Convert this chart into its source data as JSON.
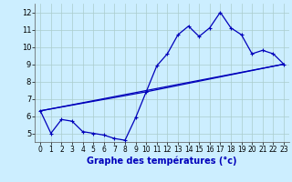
{
  "title": "Graphe des températures (°c)",
  "background_color": "#cceeff",
  "grid_color": "#aacccc",
  "line_color": "#0000bb",
  "xlim": [
    -0.5,
    23.5
  ],
  "ylim": [
    4.5,
    12.5
  ],
  "xticks": [
    0,
    1,
    2,
    3,
    4,
    5,
    6,
    7,
    8,
    9,
    10,
    11,
    12,
    13,
    14,
    15,
    16,
    17,
    18,
    19,
    20,
    21,
    22,
    23
  ],
  "yticks": [
    5,
    6,
    7,
    8,
    9,
    10,
    11,
    12
  ],
  "series1_x": [
    0,
    1,
    2,
    3,
    4,
    5,
    6,
    7,
    8,
    9,
    10,
    11,
    12,
    13,
    14,
    15,
    16,
    17,
    18,
    19,
    20,
    21,
    22,
    23
  ],
  "series1_y": [
    6.3,
    5.0,
    5.8,
    5.7,
    5.1,
    5.0,
    4.9,
    4.7,
    4.6,
    5.9,
    7.4,
    8.9,
    9.6,
    10.7,
    11.2,
    10.6,
    11.1,
    12.0,
    11.1,
    10.7,
    9.6,
    9.8,
    9.6,
    9.0
  ],
  "series2_x": [
    0,
    23
  ],
  "series2_y": [
    6.3,
    9.0
  ],
  "series3_x": [
    0,
    10,
    23
  ],
  "series3_y": [
    6.3,
    7.4,
    9.0
  ],
  "xlabel_fontsize": 7,
  "tick_fontsize": 5.5,
  "linewidth": 0.9,
  "marker_size": 2.5
}
